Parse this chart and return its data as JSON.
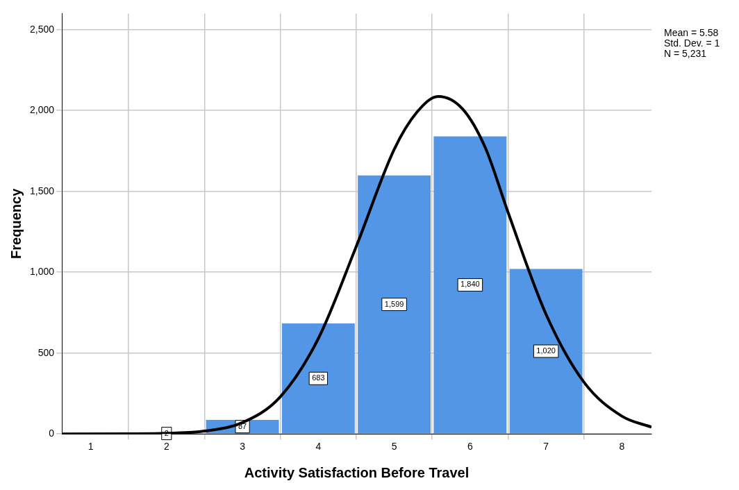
{
  "chart_data": {
    "type": "histogram",
    "xlabel": "Activity Satisfaction Before Travel",
    "ylabel": "Frequency",
    "bins": [
      1.5,
      2.5,
      3.5,
      4.5,
      5.5,
      6.5,
      7.5
    ],
    "values": [
      2,
      87,
      683,
      1599,
      1840,
      1020
    ],
    "color": "#5496e6",
    "value_labels": [
      "2",
      "87",
      "683",
      "1,599",
      "1,840",
      "1,020"
    ],
    "series": [
      {
        "type": "line",
        "color": "#000000",
        "x": [
          0.62,
          1.5,
          2,
          2.5,
          3,
          3.5,
          4,
          4.5,
          5,
          5.3,
          5.58,
          5.9,
          6.2,
          6.5,
          7,
          7.5,
          8,
          8.39
        ],
        "values": [
          0,
          1,
          4,
          18,
          70,
          230,
          590,
          1160,
          1760,
          1990,
          2087,
          2010,
          1770,
          1370,
          740,
          320,
          110,
          42
        ]
      }
    ],
    "xlim": [
      0.62,
      8.39
    ],
    "xticks": [
      1,
      2,
      3,
      4,
      5,
      6,
      7,
      8
    ],
    "ylim": [
      0,
      2600
    ],
    "yticks": [
      0,
      500,
      {
        "value": 1000,
        "label": "1,000"
      },
      {
        "value": 1500,
        "label": "1,500"
      },
      {
        "value": 2000,
        "label": "2,000"
      },
      {
        "value": 2500,
        "label": "2,500"
      }
    ],
    "grid": true,
    "legend": false,
    "annotations": [
      "Mean = 5.58",
      "Std. Dev. = 1",
      "N = 5,231"
    ]
  }
}
